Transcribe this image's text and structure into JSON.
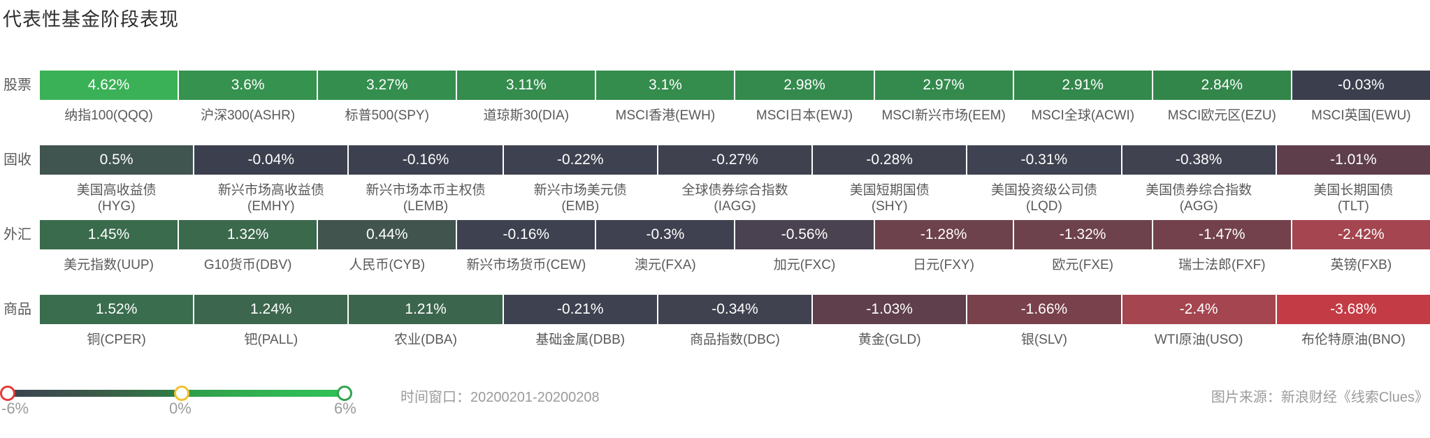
{
  "title": "代表性基金阶段表现",
  "chart_data": {
    "type": "heatmap",
    "title": "代表性基金阶段表现",
    "time_window": "20200201-20200208",
    "legend_position": "bottom-left",
    "color_scale": {
      "min": -6,
      "mid": 0,
      "max": 6,
      "min_label": "-6%",
      "mid_label": "0%",
      "max_label": "6%",
      "min_handle_color": "#e23c3c",
      "mid_handle_color": "#f2c12e",
      "max_handle_color": "#33a24f",
      "track_gradient": [
        "#3d4250 0%",
        "#3b5a48 28%",
        "#2f7c45 50%",
        "#2f9c4b 54%",
        "#32b553 80%",
        "#2fc157 100%"
      ]
    },
    "rows": [
      {
        "category": "股票",
        "items": [
          {
            "lines": [
              "纳指100(QQQ)"
            ],
            "value": 4.62,
            "value_label": "4.62%",
            "color": "#3bb157"
          },
          {
            "lines": [
              "沪深300(ASHR)"
            ],
            "value": 3.6,
            "value_label": "3.6%",
            "color": "#35924f"
          },
          {
            "lines": [
              "标普500(SPY)"
            ],
            "value": 3.27,
            "value_label": "3.27%",
            "color": "#348f4e"
          },
          {
            "lines": [
              "道琼斯30(DIA)"
            ],
            "value": 3.11,
            "value_label": "3.11%",
            "color": "#348c4d"
          },
          {
            "lines": [
              "MSCI香港(EWH)"
            ],
            "value": 3.1,
            "value_label": "3.1%",
            "color": "#348c4d"
          },
          {
            "lines": [
              "MSCI日本(EWJ)"
            ],
            "value": 2.98,
            "value_label": "2.98%",
            "color": "#338a4c"
          },
          {
            "lines": [
              "MSCI新兴市场(EEM)"
            ],
            "value": 2.97,
            "value_label": "2.97%",
            "color": "#338a4c"
          },
          {
            "lines": [
              "MSCI全球(ACWI)"
            ],
            "value": 2.91,
            "value_label": "2.91%",
            "color": "#33884b"
          },
          {
            "lines": [
              "MSCI欧元区(EZU)"
            ],
            "value": 2.84,
            "value_label": "2.84%",
            "color": "#32864a"
          },
          {
            "lines": [
              "MSCI英国(EWU)"
            ],
            "value": -0.03,
            "value_label": "-0.03%",
            "color": "#3b3f4d"
          }
        ]
      },
      {
        "category": "固收",
        "items": [
          {
            "lines": [
              "美国高收益债",
              "(HYG)"
            ],
            "value": 0.5,
            "value_label": "0.5%",
            "color": "#405550"
          },
          {
            "lines": [
              "新兴市场高收益债",
              "(EMHY)"
            ],
            "value": -0.04,
            "value_label": "-0.04%",
            "color": "#3c404e"
          },
          {
            "lines": [
              "新兴市场本币主权债",
              "(LEMB)"
            ],
            "value": -0.16,
            "value_label": "-0.16%",
            "color": "#3d404f"
          },
          {
            "lines": [
              "新兴市场美元债",
              "(EMB)"
            ],
            "value": -0.22,
            "value_label": "-0.22%",
            "color": "#3e414f"
          },
          {
            "lines": [
              "全球债券综合指数",
              "(IAGG)"
            ],
            "value": -0.27,
            "value_label": "-0.27%",
            "color": "#3f414f"
          },
          {
            "lines": [
              "美国短期国债",
              "(SHY)"
            ],
            "value": -0.28,
            "value_label": "-0.28%",
            "color": "#3f414f"
          },
          {
            "lines": [
              "美国投资级公司债",
              "(LQD)"
            ],
            "value": -0.31,
            "value_label": "-0.31%",
            "color": "#3f4250"
          },
          {
            "lines": [
              "美国债券综合指数",
              "(AGG)"
            ],
            "value": -0.38,
            "value_label": "-0.38%",
            "color": "#414250"
          },
          {
            "lines": [
              "美国长期国债",
              "(TLT)"
            ],
            "value": -1.01,
            "value_label": "-1.01%",
            "color": "#5e3e4a"
          }
        ]
      },
      {
        "category": "外汇",
        "items": [
          {
            "lines": [
              "美元指数(UUP)"
            ],
            "value": 1.45,
            "value_label": "1.45%",
            "color": "#396b4c"
          },
          {
            "lines": [
              "G10货币(DBV)"
            ],
            "value": 1.32,
            "value_label": "1.32%",
            "color": "#3a694c"
          },
          {
            "lines": [
              "人民币(CYB)"
            ],
            "value": 0.44,
            "value_label": "0.44%",
            "color": "#41544e"
          },
          {
            "lines": [
              "新兴市场货币(CEW)"
            ],
            "value": -0.16,
            "value_label": "-0.16%",
            "color": "#3e4150"
          },
          {
            "lines": [
              "澳元(FXA)"
            ],
            "value": -0.3,
            "value_label": "-0.3%",
            "color": "#404150"
          },
          {
            "lines": [
              "加元(FXC)"
            ],
            "value": -0.56,
            "value_label": "-0.56%",
            "color": "#4a4250"
          },
          {
            "lines": [
              "日元(FXY)"
            ],
            "value": -1.28,
            "value_label": "-1.28%",
            "color": "#6d424c"
          },
          {
            "lines": [
              "欧元(FXE)"
            ],
            "value": -1.32,
            "value_label": "-1.32%",
            "color": "#6e424c"
          },
          {
            "lines": [
              "瑞士法郎(FXF)"
            ],
            "value": -1.47,
            "value_label": "-1.47%",
            "color": "#73414b"
          },
          {
            "lines": [
              "英镑(FXB)"
            ],
            "value": -2.42,
            "value_label": "-2.42%",
            "color": "#a4454f"
          }
        ]
      },
      {
        "category": "商品",
        "items": [
          {
            "lines": [
              "铜(CPER)"
            ],
            "value": 1.52,
            "value_label": "1.52%",
            "color": "#3a6d4e"
          },
          {
            "lines": [
              "钯(PALL)"
            ],
            "value": 1.24,
            "value_label": "1.24%",
            "color": "#3c664d"
          },
          {
            "lines": [
              "农业(DBA)"
            ],
            "value": 1.21,
            "value_label": "1.21%",
            "color": "#3c654d"
          },
          {
            "lines": [
              "基础金属(DBB)"
            ],
            "value": -0.21,
            "value_label": "-0.21%",
            "color": "#3e414f"
          },
          {
            "lines": [
              "商品指数(DBC)"
            ],
            "value": -0.34,
            "value_label": "-0.34%",
            "color": "#404250"
          },
          {
            "lines": [
              "黄金(GLD)"
            ],
            "value": -1.03,
            "value_label": "-1.03%",
            "color": "#5e3f4b"
          },
          {
            "lines": [
              "银(SLV)"
            ],
            "value": -1.66,
            "value_label": "-1.66%",
            "color": "#78414b"
          },
          {
            "lines": [
              "WTI原油(USO)"
            ],
            "value": -2.4,
            "value_label": "-2.4%",
            "color": "#a4454f"
          },
          {
            "lines": [
              "布伦特原油(BNO)"
            ],
            "value": -3.68,
            "value_label": "-3.68%",
            "color": "#c33b44"
          }
        ]
      }
    ]
  },
  "footer": {
    "time_window_text": "时间窗口：20200201-20200208",
    "source_text": "图片来源：新浪财经《线索Clues》"
  }
}
